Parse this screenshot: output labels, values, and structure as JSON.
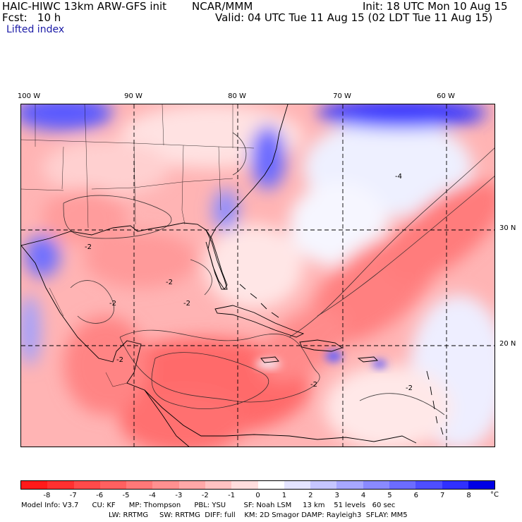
{
  "header": {
    "model": "HAIC-HIWC 13km ARW-GFS init",
    "org": "NCAR/MMM",
    "init": "Init: 18 UTC Mon 10 Aug 15",
    "fcst": "Fcst:   10 h",
    "valid": "Valid: 04 UTC Tue 11 Aug 15 (02 LDT Tue 11 Aug 15)",
    "field": "Lifted index"
  },
  "map": {
    "lon_labels": [
      "100 W",
      "90 W",
      "80 W",
      "70 W",
      "60 W"
    ],
    "lat_labels": [
      "30 N",
      "20 N"
    ],
    "contour_labels": [
      "-2",
      "-4"
    ]
  },
  "colorbar": {
    "labels": [
      "-8",
      "-7",
      "-6",
      "-5",
      "-4",
      "-3",
      "-2",
      "-1",
      "0",
      "1",
      "2",
      "3",
      "4",
      "5",
      "6",
      "7",
      "8"
    ],
    "unit": "°C",
    "colors": [
      "#ff1a1a",
      "#ff3030",
      "#ff4a4a",
      "#ff6060",
      "#ff7878",
      "#ff9090",
      "#ffa8a8",
      "#ffc2c2",
      "#ffdede",
      "#ffffff",
      "#e4e4ff",
      "#c6c6ff",
      "#a8a8ff",
      "#8a8aff",
      "#6c6cff",
      "#4e4eff",
      "#3030ff",
      "#0000e6"
    ]
  },
  "info": {
    "line1": "Model Info: V3.7      CU: KF      MP: Thompson      PBL: YSU        SF: Noah LSM     13 km    51 levels   60 sec",
    "line2": "LW: RRTMG     SW: RRTMG  DIFF: full    KM: 2D Smagor DAMP: Rayleigh3  SFLAY: MM5"
  }
}
